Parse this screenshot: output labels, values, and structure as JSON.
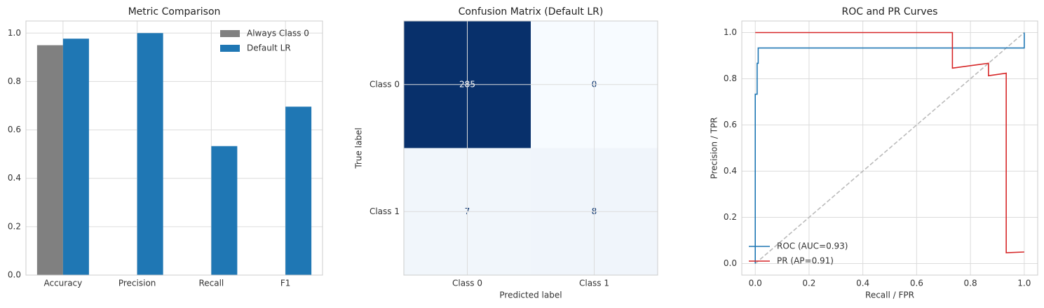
{
  "chart_data": [
    {
      "type": "bar",
      "title": "Metric Comparison",
      "categories": [
        "Accuracy",
        "Precision",
        "Recall",
        "F1"
      ],
      "series": [
        {
          "name": "Always Class 0",
          "color": "#808080",
          "values": [
            0.95,
            0,
            0,
            0
          ]
        },
        {
          "name": "Default LR",
          "color": "#1f77b4",
          "values": [
            0.977,
            1.0,
            0.533,
            0.696
          ]
        }
      ],
      "ylim": [
        0,
        1.05
      ],
      "yticks": [
        {
          "value": 0,
          "label": "0.0"
        },
        {
          "value": 0.2,
          "label": "0.2"
        },
        {
          "value": 0.4,
          "label": "0.4"
        },
        {
          "value": 0.6,
          "label": "0.6"
        },
        {
          "value": 0.8,
          "label": "0.8"
        },
        {
          "value": 1,
          "label": "1.0"
        }
      ],
      "grid": true,
      "legend": "upper right"
    },
    {
      "type": "heatmap",
      "title": "Confusion Matrix (Default LR)",
      "x_categories": [
        "Class 0",
        "Class 1"
      ],
      "y_categories": [
        "Class 0",
        "Class 1"
      ],
      "values": [
        [
          285,
          0
        ],
        [
          7,
          8
        ]
      ],
      "xlabel": "Predicted label",
      "ylabel": "True label",
      "cmap": [
        "#f7fbff",
        "#08306b"
      ],
      "grid": true
    },
    {
      "type": "line",
      "title": "ROC and PR Curves",
      "series": [
        {
          "name": "ROC (AUC=0.93)",
          "color": "#1f77b4",
          "x": [
            0,
            0,
            0.007,
            0.007,
            0.011,
            0.011,
            1,
            1
          ],
          "values": [
            0,
            0.733,
            0.733,
            0.867,
            0.867,
            0.933,
            0.933,
            1
          ]
        },
        {
          "name": "PR (AP=0.91)",
          "color": "#d62728",
          "x": [
            0,
            0.733,
            0.733,
            0.867,
            0.867,
            0.933,
            0.933,
            1
          ],
          "values": [
            1,
            1,
            0.846,
            0.867,
            0.813,
            0.824,
            0.047,
            0.05
          ]
        }
      ],
      "reference_line": {
        "color": "#bbbbbb",
        "x": [
          0,
          1
        ],
        "values": [
          0,
          1
        ]
      },
      "xlabel": "Recall / FPR",
      "ylabel": "Precision / TPR",
      "xlim": [
        -0.05,
        1.05
      ],
      "ylim": [
        -0.05,
        1.05
      ],
      "xticks": [
        {
          "value": 0,
          "label": "0.0"
        },
        {
          "value": 0.2,
          "label": "0.2"
        },
        {
          "value": 0.4,
          "label": "0.4"
        },
        {
          "value": 0.6,
          "label": "0.6"
        },
        {
          "value": 0.8,
          "label": "0.8"
        },
        {
          "value": 1,
          "label": "1.0"
        }
      ],
      "yticks": [
        {
          "value": 0,
          "label": "0.0"
        },
        {
          "value": 0.2,
          "label": "0.2"
        },
        {
          "value": 0.4,
          "label": "0.4"
        },
        {
          "value": 0.6,
          "label": "0.6"
        },
        {
          "value": 0.8,
          "label": "0.8"
        },
        {
          "value": 1,
          "label": "1.0"
        }
      ],
      "grid": true,
      "legend": "lower left"
    }
  ]
}
